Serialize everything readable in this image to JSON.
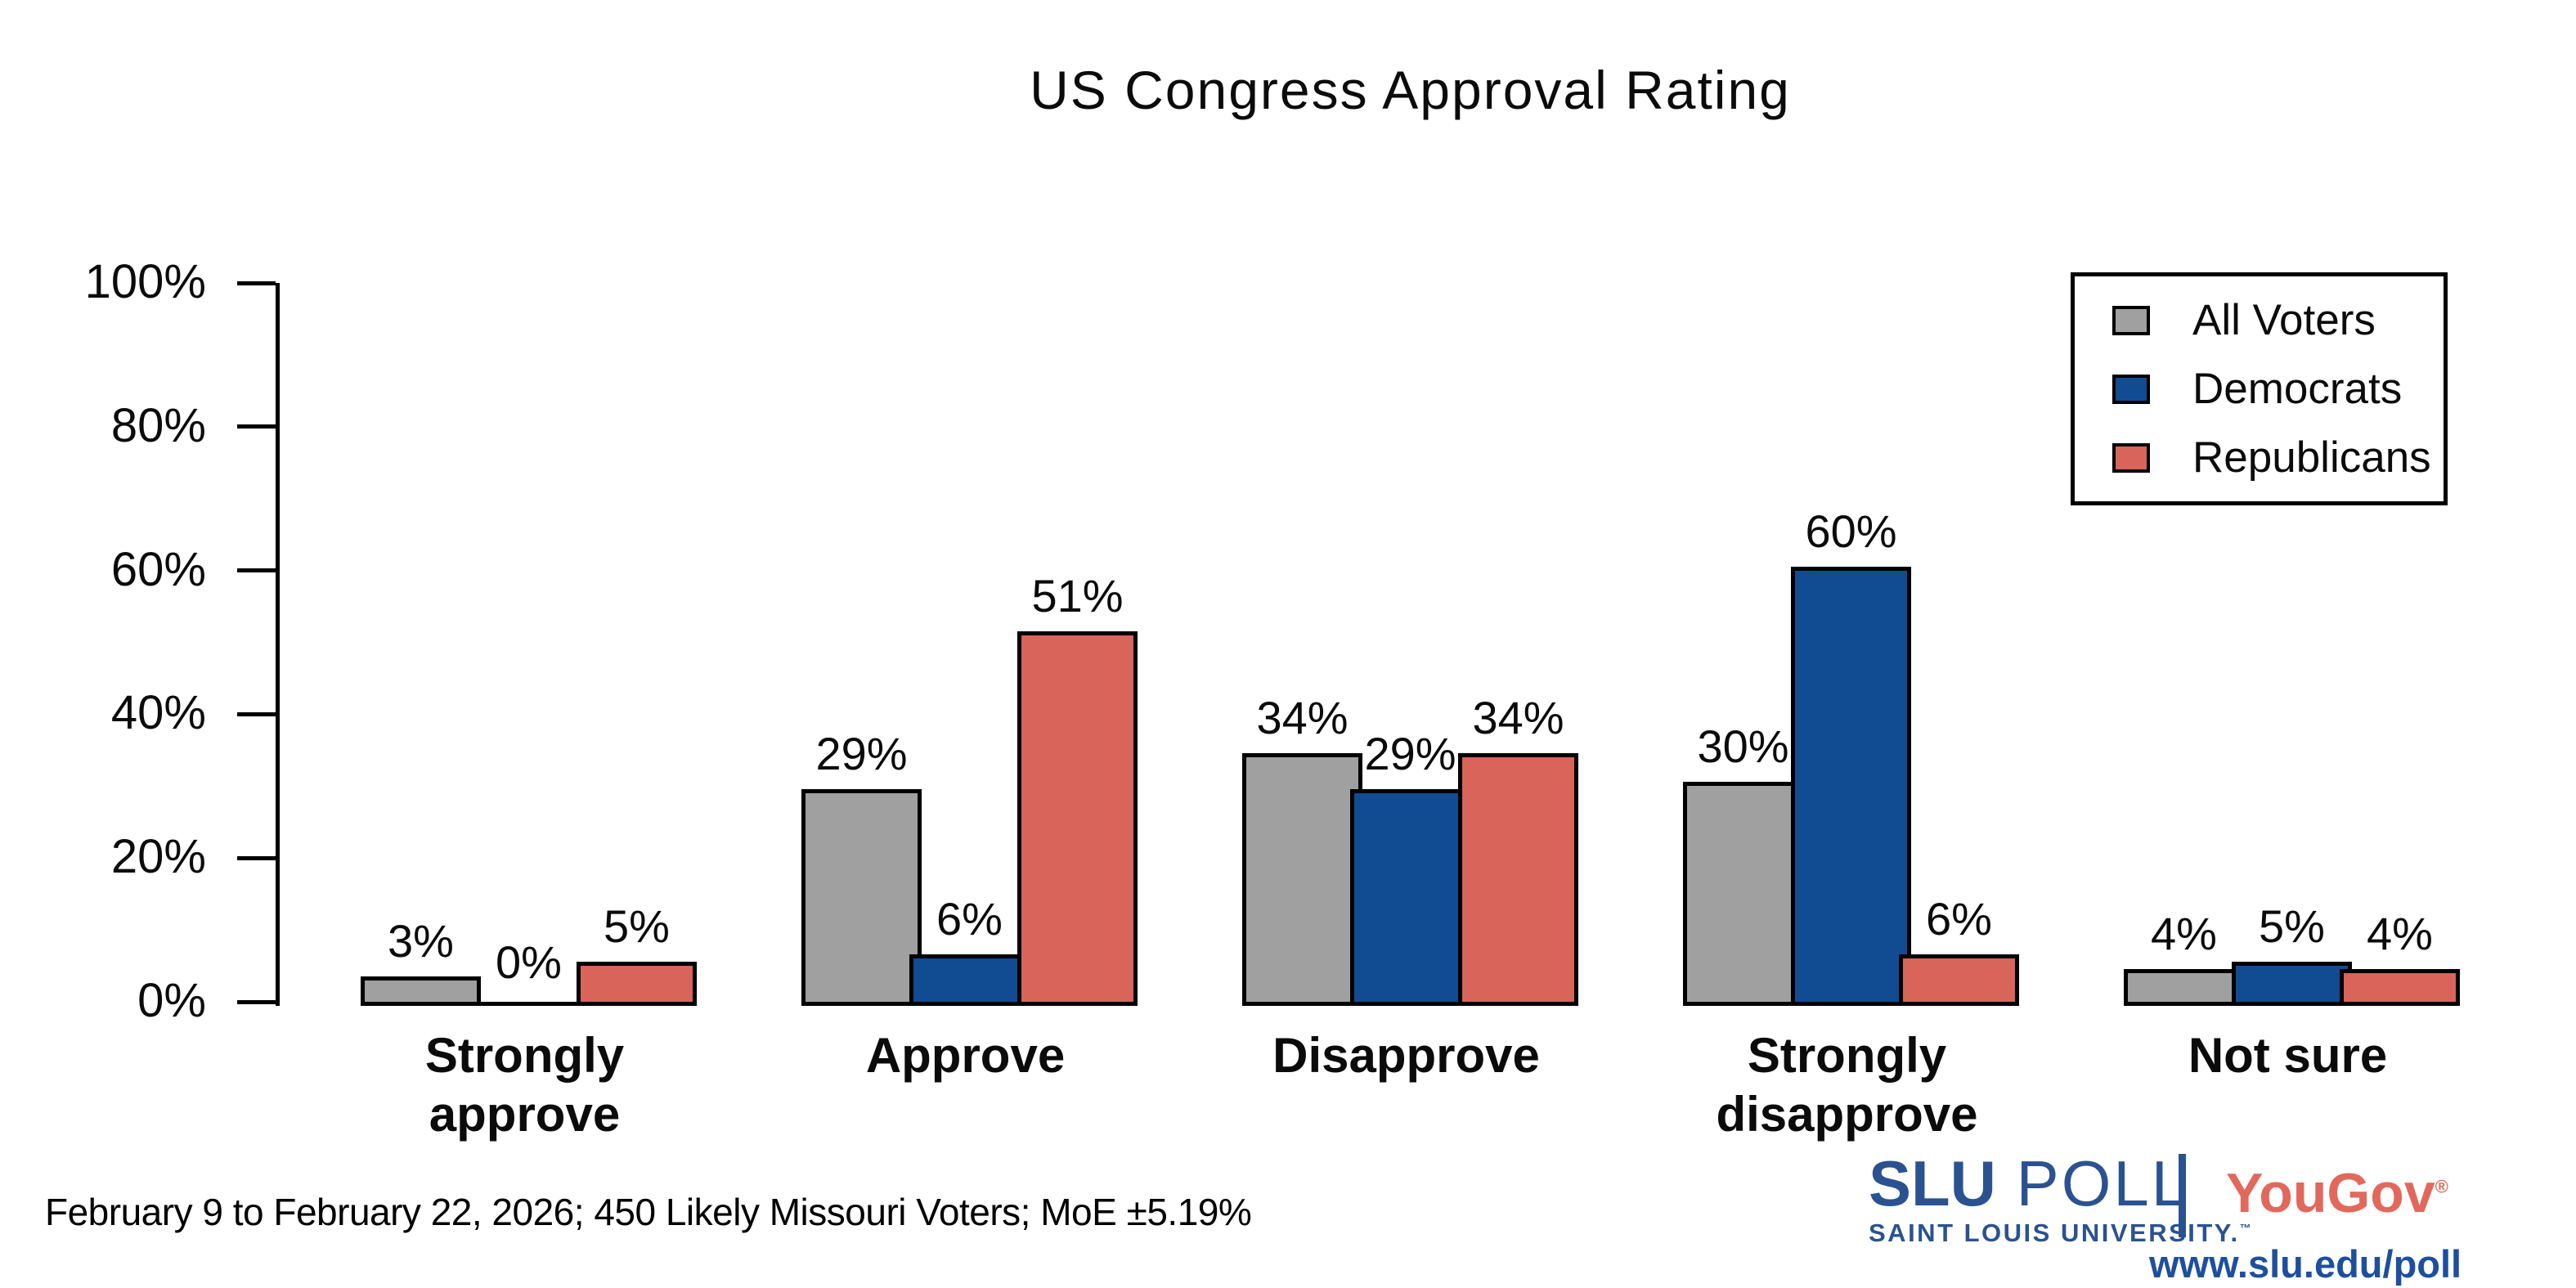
{
  "chart_data": {
    "type": "bar",
    "title": "US Congress Approval Rating",
    "categories": [
      "Strongly approve",
      "Approve",
      "Disapprove",
      "Strongly disapprove",
      "Not sure"
    ],
    "series": [
      {
        "name": "All Voters",
        "color": "#a0a0a0",
        "values": [
          3,
          29,
          34,
          30,
          4
        ]
      },
      {
        "name": "Democrats",
        "color": "#114c92",
        "values": [
          0,
          6,
          29,
          60,
          5
        ]
      },
      {
        "name": "Republicans",
        "color": "#d96459",
        "values": [
          5,
          51,
          34,
          6,
          4
        ]
      }
    ],
    "value_label_suffix": "%",
    "yticks": [
      "0%",
      "20%",
      "40%",
      "60%",
      "80%",
      "100%"
    ],
    "ylim": [
      0,
      100
    ],
    "grid": false,
    "legend_position": "top-right"
  },
  "footer": {
    "note": "February 9 to February 22, 2026; 450 Likely Missouri Voters; MoE ±5.19%"
  },
  "branding": {
    "slu_bold": "SLU",
    "slu_rest": " POLL",
    "slu_sub": "SAINT LOUIS UNIVERSITY.",
    "slu_tm": "™",
    "yougov": "YouGov",
    "yougov_reg": "®",
    "url": "www.slu.edu/poll"
  },
  "colors": {
    "bar_outline": "#000000",
    "slu_blue": "#2b5290",
    "yougov_red": "#e2685c",
    "url_blue": "#1d4f9e"
  }
}
